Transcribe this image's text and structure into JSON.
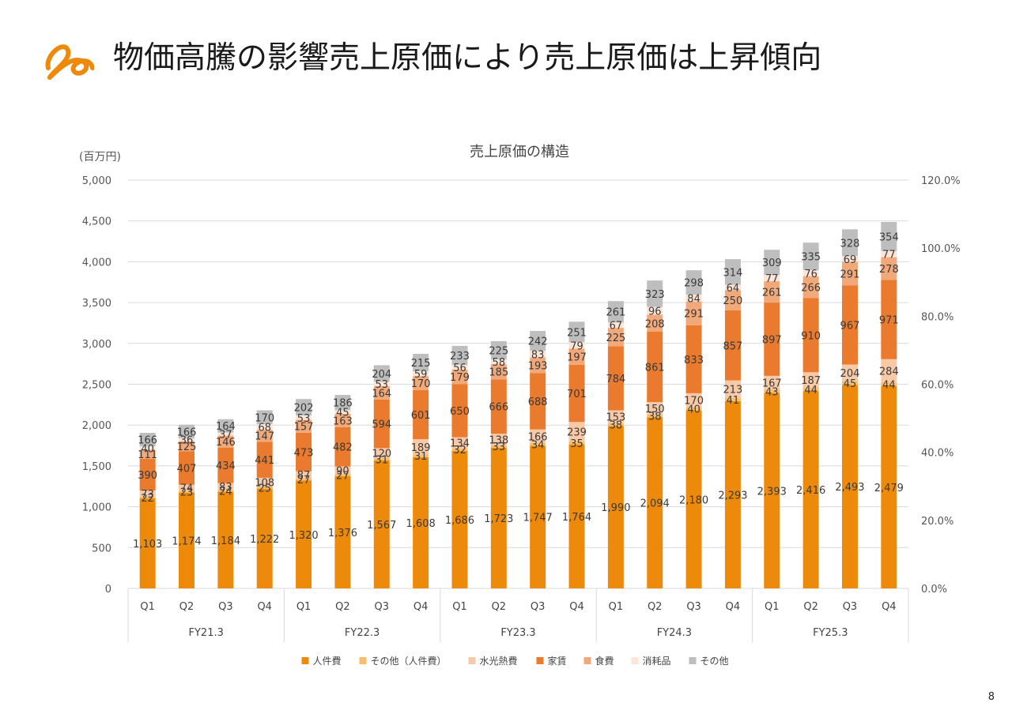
{
  "page": {
    "title": "物価高騰の影響売上原価により売上原価は上昇傾向",
    "number": "8"
  },
  "chart_data": {
    "type": "bar",
    "stacked": true,
    "title": "売上原価の構造",
    "y_unit_label": "(百万円)",
    "ylim": [
      0,
      5000
    ],
    "y_ticks": [
      "0",
      "500",
      "1,000",
      "1,500",
      "2,000",
      "2,500",
      "3,000",
      "3,500",
      "4,000",
      "4,500",
      "5,000"
    ],
    "y2lim": [
      0,
      120
    ],
    "y2_ticks": [
      "0.0%",
      "20.0%",
      "40.0%",
      "60.0%",
      "80.0%",
      "100.0%",
      "120.0%"
    ],
    "grid": true,
    "legend_position": "bottom",
    "groups": [
      "FY21.3",
      "FY22.3",
      "FY23.3",
      "FY24.3",
      "FY25.3"
    ],
    "categories": [
      "Q1",
      "Q2",
      "Q3",
      "Q4",
      "Q1",
      "Q2",
      "Q3",
      "Q4",
      "Q1",
      "Q2",
      "Q3",
      "Q4",
      "Q1",
      "Q2",
      "Q3",
      "Q4",
      "Q1",
      "Q2",
      "Q3",
      "Q4"
    ],
    "series": [
      {
        "name": "人件費",
        "color": "#EE8A0B",
        "values": [
          1103,
          1174,
          1184,
          1222,
          1320,
          1376,
          1567,
          1608,
          1686,
          1723,
          1747,
          1764,
          1990,
          2094,
          2180,
          2293,
          2393,
          2416,
          2493,
          2479
        ],
        "labels": [
          "1,103",
          "1,174",
          "1,184",
          "1,222",
          "1,320",
          "1,376",
          "1,567",
          "1,608",
          "1,686",
          "1,723",
          "1,747",
          "1,764",
          "1,990",
          "2,094",
          "2,180",
          "2,293",
          "2,393",
          "2,416",
          "2,493",
          "2,479"
        ]
      },
      {
        "name": "その他（人件費）",
        "color": "#F7BE6E",
        "values": [
          22,
          23,
          24,
          25,
          27,
          27,
          31,
          31,
          32,
          33,
          34,
          35,
          38,
          38,
          40,
          41,
          43,
          44,
          45,
          44
        ],
        "labels": [
          "22",
          "23",
          "24",
          "25",
          "27",
          "27",
          "31",
          "31",
          "32",
          "33",
          "34",
          "35",
          "38",
          "38",
          "40",
          "41",
          "43",
          "44",
          "45",
          "44"
        ]
      },
      {
        "name": "水光熱費",
        "color": "#F8C9A7",
        "values": [
          73,
          74,
          83,
          108,
          87,
          90,
          120,
          189,
          134,
          138,
          166,
          239,
          153,
          150,
          170,
          213,
          167,
          187,
          204,
          284
        ],
        "labels": [
          "73",
          "74",
          "83",
          "108",
          "87",
          "90",
          "120",
          "189",
          "134",
          "138",
          "166",
          "239",
          "153",
          "150",
          "170",
          "213",
          "167",
          "187",
          "204",
          "284"
        ]
      },
      {
        "name": "家賃",
        "color": "#E97A2E",
        "values": [
          390,
          407,
          434,
          441,
          473,
          482,
          594,
          601,
          650,
          666,
          688,
          701,
          784,
          861,
          833,
          857,
          897,
          910,
          967,
          971
        ],
        "labels": [
          "390",
          "407",
          "434",
          "441",
          "473",
          "482",
          "594",
          "601",
          "650",
          "666",
          "688",
          "701",
          "784",
          "861",
          "833",
          "857",
          "897",
          "910",
          "967",
          "971"
        ]
      },
      {
        "name": "食費",
        "color": "#F1A97A",
        "values": [
          111,
          125,
          146,
          147,
          157,
          163,
          164,
          170,
          179,
          185,
          193,
          197,
          225,
          208,
          291,
          250,
          261,
          266,
          291,
          278
        ],
        "labels": [
          "111",
          "125",
          "146",
          "147",
          "157",
          "163",
          "164",
          "170",
          "179",
          "185",
          "193",
          "197",
          "225",
          "208",
          "291",
          "250",
          "261",
          "266",
          "291",
          "278"
        ]
      },
      {
        "name": "消耗品",
        "color": "#FCE4D6",
        "values": [
          40,
          36,
          37,
          68,
          53,
          45,
          53,
          59,
          56,
          58,
          83,
          79,
          67,
          96,
          84,
          64,
          77,
          76,
          69,
          77
        ],
        "labels": [
          "40",
          "36",
          "37",
          "68",
          "53",
          "45",
          "53",
          "59",
          "56",
          "58",
          "83",
          "79",
          "67",
          "96",
          "84",
          "64",
          "77",
          "76",
          "69",
          "77"
        ]
      },
      {
        "name": "その他",
        "color": "#BEBEBE",
        "values": [
          166,
          166,
          164,
          170,
          202,
          186,
          204,
          215,
          233,
          225,
          242,
          251,
          261,
          323,
          298,
          314,
          309,
          335,
          328,
          354
        ],
        "labels": [
          "166",
          "166",
          "164",
          "170",
          "202",
          "186",
          "204",
          "215",
          "233",
          "225",
          "242",
          "251",
          "261",
          "323",
          "298",
          "314",
          "309",
          "335",
          "328",
          "354"
        ]
      }
    ]
  }
}
